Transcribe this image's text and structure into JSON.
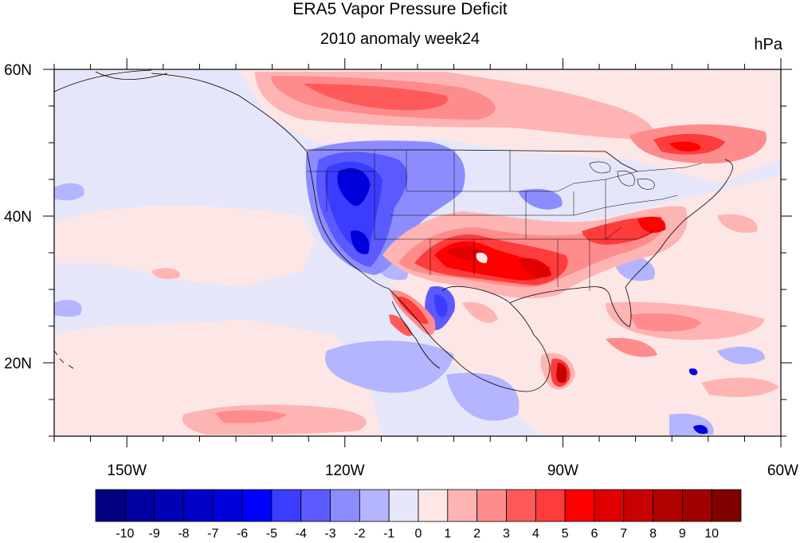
{
  "title": "ERA5 Vapor Pressure Deficit",
  "subtitle": "2010 anomaly week24",
  "units": "hPa",
  "map": {
    "extent": {
      "lon_min": -160,
      "lon_max": -60,
      "lat_min": 10,
      "lat_max": 60
    },
    "lon_ticks": [
      {
        "lon": -150,
        "label": "150W"
      },
      {
        "lon": -120,
        "label": "120W"
      },
      {
        "lon": -90,
        "label": "90W"
      },
      {
        "lon": -60,
        "label": "60W"
      }
    ],
    "lat_ticks": [
      {
        "lat": 60,
        "label": "60N"
      },
      {
        "lat": 40,
        "label": "40N"
      },
      {
        "lat": 20,
        "label": "20N"
      }
    ],
    "background_color": "#e6e6fa"
  },
  "colorbar": {
    "labels": [
      "-10",
      "-9",
      "-8",
      "-7",
      "-6",
      "-5",
      "-4",
      "-3",
      "-2",
      "-1",
      "0",
      "1",
      "2",
      "3",
      "4",
      "5",
      "6",
      "7",
      "8",
      "9",
      "10"
    ],
    "colors": [
      "#000080",
      "#0000a0",
      "#0000b4",
      "#0000c8",
      "#0000dc",
      "#0000ff",
      "#3c3cff",
      "#5a5aff",
      "#8c8cff",
      "#b4b4ff",
      "#e6e6fa",
      "#fde6e6",
      "#ffb4b4",
      "#ff8c8c",
      "#ff5a5a",
      "#ff3c3c",
      "#ff0000",
      "#e00000",
      "#c80000",
      "#b00000",
      "#a00000",
      "#800000"
    ]
  }
}
